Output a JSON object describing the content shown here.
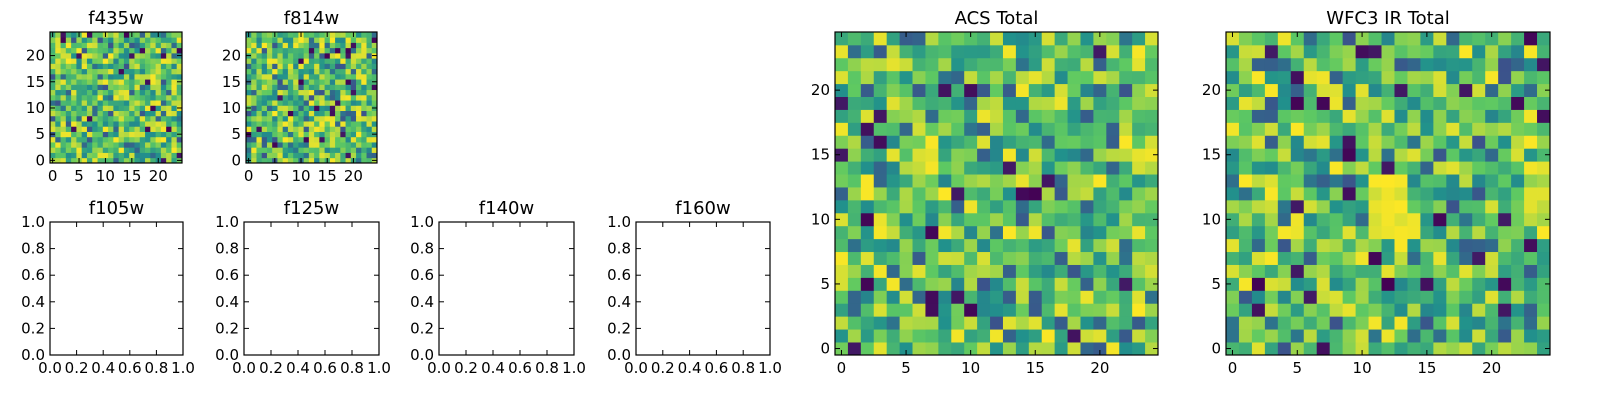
{
  "chart_data": [
    {
      "type": "heatmap",
      "title": "f435w",
      "grid_size": 25,
      "xlim": [
        -0.5,
        24.5
      ],
      "ylim": [
        -0.5,
        24.5
      ],
      "xticks": [
        0,
        5,
        10,
        15,
        20
      ],
      "yticks": [
        0,
        5,
        10,
        15,
        20
      ],
      "colormap": "viridis",
      "seed": 435
    },
    {
      "type": "heatmap",
      "title": "f814w",
      "grid_size": 25,
      "xlim": [
        -0.5,
        24.5
      ],
      "ylim": [
        -0.5,
        24.5
      ],
      "xticks": [
        0,
        5,
        10,
        15,
        20
      ],
      "yticks": [
        0,
        5,
        10,
        15,
        20
      ],
      "colormap": "viridis",
      "seed": 814
    },
    {
      "type": "empty",
      "title": "f105w",
      "xlim": [
        0,
        1
      ],
      "ylim": [
        0,
        1
      ],
      "xticks": [
        "0.0",
        "0.2",
        "0.4",
        "0.6",
        "0.8",
        "1.0"
      ],
      "yticks": [
        "0.0",
        "0.2",
        "0.4",
        "0.6",
        "0.8",
        "1.0"
      ]
    },
    {
      "type": "empty",
      "title": "f125w",
      "xlim": [
        0,
        1
      ],
      "ylim": [
        0,
        1
      ],
      "xticks": [
        "0.0",
        "0.2",
        "0.4",
        "0.6",
        "0.8",
        "1.0"
      ],
      "yticks": [
        "0.0",
        "0.2",
        "0.4",
        "0.6",
        "0.8",
        "1.0"
      ]
    },
    {
      "type": "empty",
      "title": "f140w",
      "xlim": [
        0,
        1
      ],
      "ylim": [
        0,
        1
      ],
      "xticks": [
        "0.0",
        "0.2",
        "0.4",
        "0.6",
        "0.8",
        "1.0"
      ],
      "yticks": [
        "0.0",
        "0.2",
        "0.4",
        "0.6",
        "0.8",
        "1.0"
      ]
    },
    {
      "type": "empty",
      "title": "f160w",
      "xlim": [
        0,
        1
      ],
      "ylim": [
        0,
        1
      ],
      "xticks": [
        "0.0",
        "0.2",
        "0.4",
        "0.6",
        "0.8",
        "1.0"
      ],
      "yticks": [
        "0.0",
        "0.2",
        "0.4",
        "0.6",
        "0.8",
        "1.0"
      ]
    },
    {
      "type": "heatmap",
      "title": "ACS Total",
      "grid_size": 25,
      "xlim": [
        -0.5,
        24.5
      ],
      "ylim": [
        -0.5,
        24.5
      ],
      "xticks": [
        0,
        5,
        10,
        15,
        20
      ],
      "yticks": [
        0,
        5,
        10,
        15,
        20
      ],
      "colormap": "viridis",
      "seed": 1249
    },
    {
      "type": "heatmap",
      "title": "WFC3 IR Total",
      "grid_size": 25,
      "xlim": [
        -0.5,
        24.5
      ],
      "ylim": [
        -0.5,
        24.5
      ],
      "xticks": [
        0,
        5,
        10,
        15,
        20
      ],
      "yticks": [
        0,
        5,
        10,
        15,
        20
      ],
      "colormap": "viridis",
      "seed": 530,
      "bright_region": {
        "x": [
          11,
          13
        ],
        "y": [
          9,
          13
        ]
      }
    }
  ],
  "colors": {
    "viridis": [
      "#440154",
      "#3b528b",
      "#21918c",
      "#5ec962",
      "#fde725"
    ],
    "axis": "#000000",
    "background": "#ffffff"
  }
}
